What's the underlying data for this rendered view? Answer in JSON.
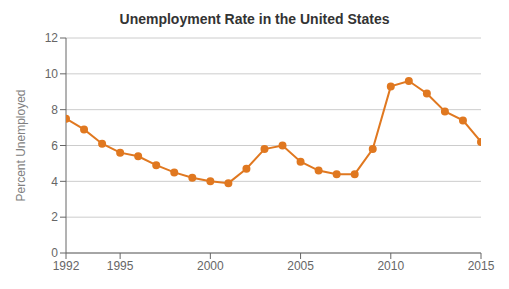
{
  "chart_data": {
    "type": "line",
    "title": "Unemployment Rate in the United States",
    "ylabel": "Percent Unemployed",
    "x": [
      1992,
      1993,
      1994,
      1995,
      1996,
      1997,
      1998,
      1999,
      2000,
      2001,
      2002,
      2003,
      2004,
      2005,
      2006,
      2007,
      2008,
      2009,
      2010,
      2011,
      2012,
      2013,
      2014,
      2015
    ],
    "values": [
      7.5,
      6.9,
      6.1,
      5.6,
      5.4,
      4.9,
      4.5,
      4.2,
      4.0,
      3.9,
      4.7,
      5.8,
      6.0,
      5.1,
      4.6,
      4.4,
      4.4,
      5.8,
      9.3,
      9.6,
      8.9,
      7.9,
      7.4,
      6.2
    ],
    "color": "#E07820",
    "marker": "circle",
    "xlim": [
      1992,
      2015
    ],
    "xticks": [
      1992,
      1995,
      2000,
      2005,
      2010,
      2015
    ],
    "ylim": [
      0,
      12
    ],
    "yticks": [
      0,
      2,
      4,
      6,
      8,
      10,
      12
    ],
    "grid": true
  }
}
